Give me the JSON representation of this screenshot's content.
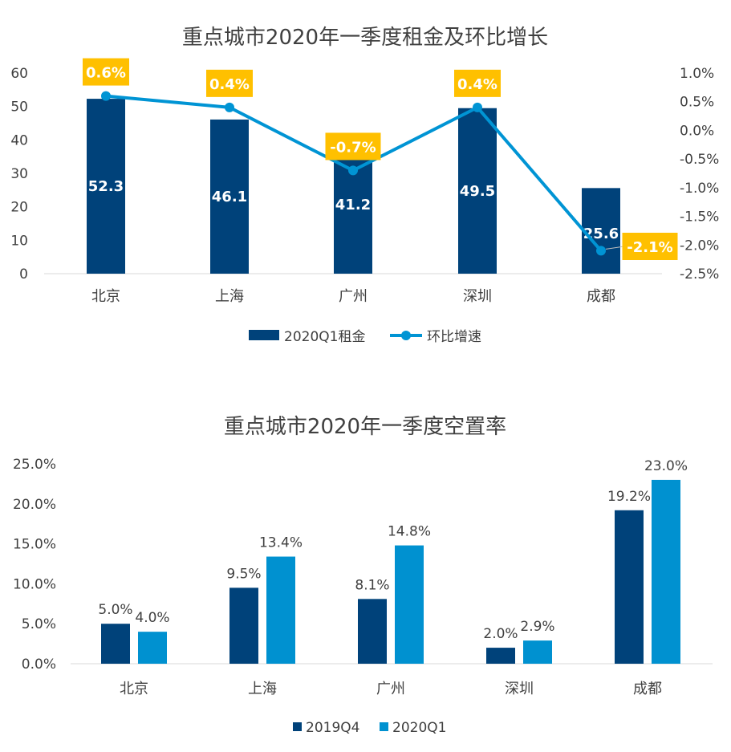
{
  "chart_data": [
    {
      "type": "bar+line",
      "title": "重点城市2020年一季度租金及环比增长",
      "categories": [
        "北京",
        "上海",
        "广州",
        "深圳",
        "成都"
      ],
      "series": [
        {
          "name": "2020Q1租金",
          "type": "bar",
          "axis": "left",
          "values": [
            52.3,
            46.1,
            41.2,
            49.5,
            25.6
          ],
          "labels": [
            "52.3",
            "46.1",
            "41.2",
            "49.5",
            "25.6"
          ]
        },
        {
          "name": "环比增速",
          "type": "line",
          "axis": "right",
          "values": [
            0.6,
            0.4,
            -0.7,
            0.4,
            -2.1
          ],
          "labels": [
            "0.6%",
            "0.4%",
            "-0.7%",
            "0.4%",
            "-2.1%"
          ]
        }
      ],
      "ylim": [
        0,
        60
      ],
      "yticks": [
        "0",
        "10",
        "20",
        "30",
        "40",
        "50",
        "60"
      ],
      "y2lim": [
        -2.5,
        1.0
      ],
      "y2ticks": [
        "1.0%",
        "0.5%",
        "0.0%",
        "-0.5%",
        "-1.0%",
        "-1.5%",
        "-2.0%",
        "-2.5%"
      ],
      "legend": "bottom",
      "grid": false
    },
    {
      "type": "bar",
      "title": "重点城市2020年一季度空置率",
      "categories": [
        "北京",
        "上海",
        "广州",
        "深圳",
        "成都"
      ],
      "series": [
        {
          "name": "2019Q4",
          "values": [
            5.0,
            9.5,
            8.1,
            2.0,
            19.2
          ],
          "labels": [
            "5.0%",
            "9.5%",
            "8.1%",
            "2.0%",
            "19.2%"
          ]
        },
        {
          "name": "2020Q1",
          "values": [
            4.0,
            13.4,
            14.8,
            2.9,
            23.0
          ],
          "labels": [
            "4.0%",
            "13.4%",
            "14.8%",
            "2.9%",
            "23.0%"
          ]
        }
      ],
      "ylim": [
        0,
        25
      ],
      "yticks": [
        "0.0%",
        "5.0%",
        "10.0%",
        "15.0%",
        "20.0%",
        "25.0%"
      ],
      "legend": "bottom",
      "grid": false
    }
  ],
  "colors": {
    "dark": "#00427A",
    "light": "#0091D0",
    "line": "#0094D4",
    "label_bg": "#FFC000",
    "text": "#404040"
  }
}
